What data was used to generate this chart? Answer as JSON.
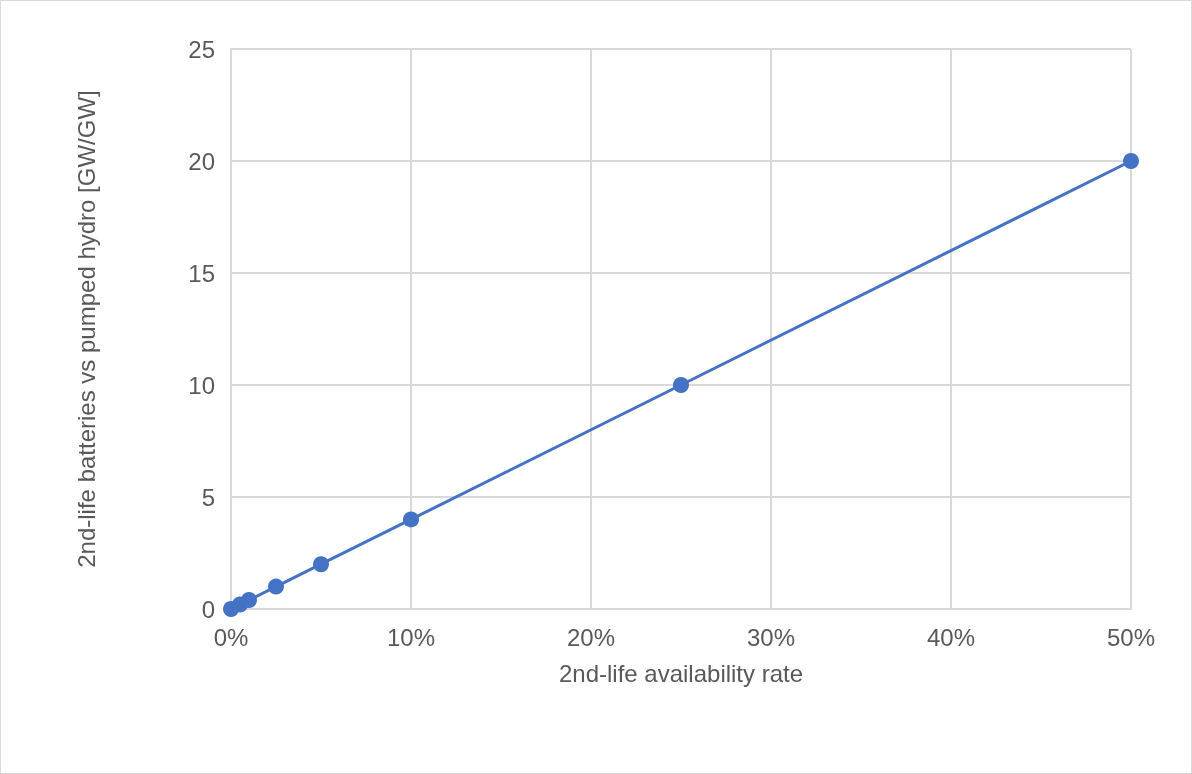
{
  "chart_data": {
    "type": "line",
    "xlabel": "2nd-life availability rate",
    "ylabel": "2nd-life batteries vs pumped hydro [GW/GW]",
    "x": [
      0,
      0.5,
      1,
      2.5,
      5,
      10,
      25,
      50
    ],
    "series": [
      {
        "color": "#4472c4",
        "values": [
          0,
          0.2,
          0.4,
          1,
          2,
          4,
          10,
          20
        ]
      }
    ],
    "xlim": [
      0,
      50
    ],
    "xticks": [
      {
        "value": 0,
        "label": "0%"
      },
      {
        "value": 10,
        "label": "10%"
      },
      {
        "value": 20,
        "label": "20%"
      },
      {
        "value": 30,
        "label": "30%"
      },
      {
        "value": 40,
        "label": "40%"
      },
      {
        "value": 50,
        "label": "50%"
      }
    ],
    "ylim": [
      0,
      25
    ],
    "yticks": [
      0,
      5,
      10,
      15,
      20,
      25
    ],
    "grid": true,
    "marker": "circle",
    "line_style": "solid"
  }
}
